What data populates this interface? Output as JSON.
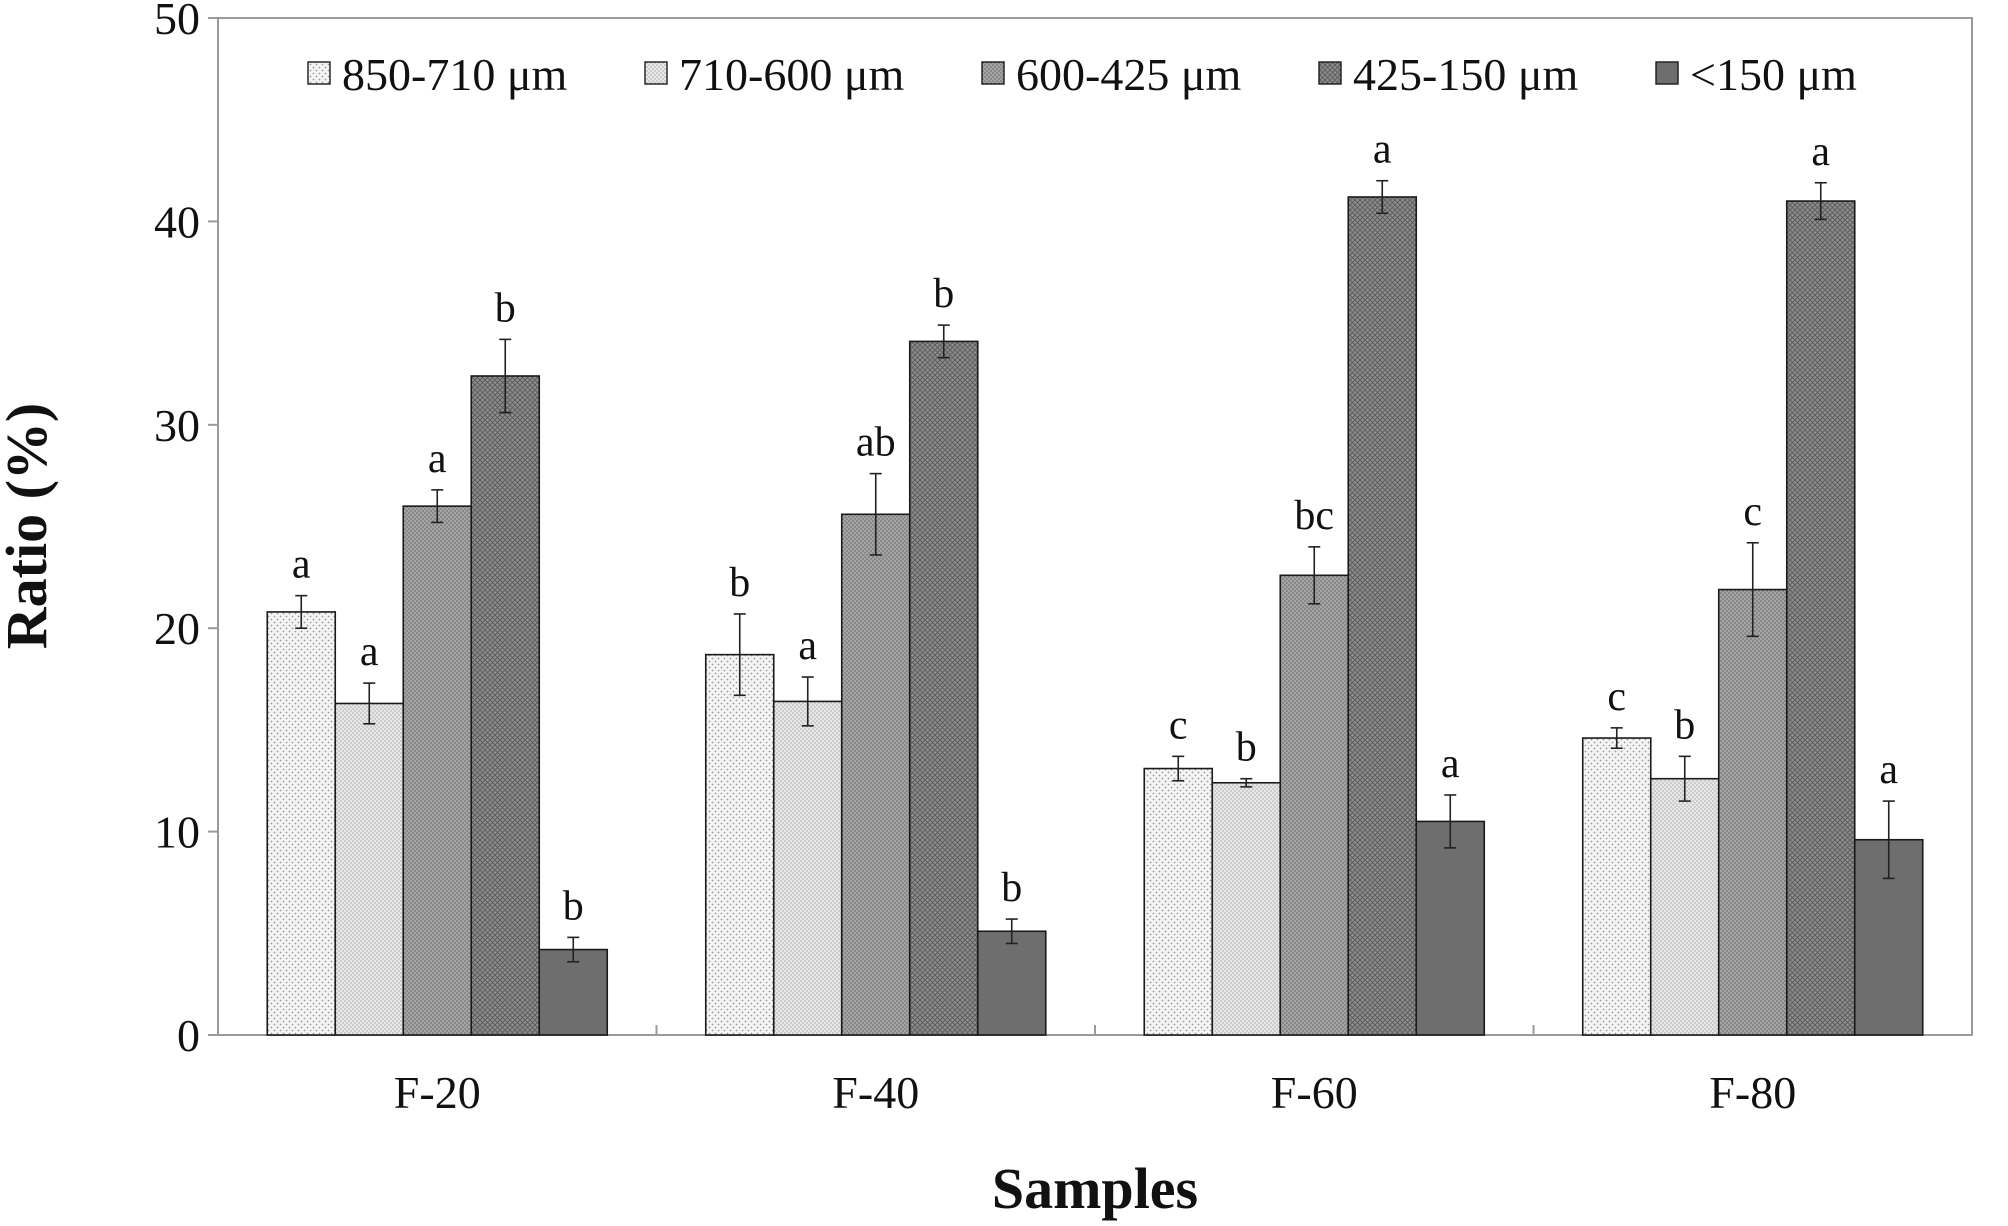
{
  "chart_data": {
    "type": "bar",
    "title": "",
    "xlabel": "Samples",
    "ylabel": "Ratio (%)",
    "ylim": [
      0,
      50
    ],
    "yticks": [
      "0",
      "10",
      "20",
      "30",
      "40",
      "50"
    ],
    "categories": [
      "F-20",
      "F-40",
      "F-60",
      "F-80"
    ],
    "legend_position": "top",
    "grid": false,
    "series": [
      {
        "name": "850-710 μm",
        "fill": "#f2f2f2",
        "pattern": "sparse-dots",
        "values": [
          20.8,
          18.7,
          13.1,
          14.6
        ],
        "errors": [
          0.8,
          2.0,
          0.6,
          0.5
        ],
        "letters": [
          "a",
          "b",
          "c",
          "c"
        ]
      },
      {
        "name": "710-600 μm",
        "fill": "#e4e4e4",
        "pattern": "fine-dots",
        "values": [
          16.3,
          16.4,
          12.4,
          12.6
        ],
        "errors": [
          1.0,
          1.2,
          0.2,
          1.1
        ],
        "letters": [
          "a",
          "a",
          "b",
          "b"
        ]
      },
      {
        "name": "600-425 μm",
        "fill": "#9c9c9c",
        "pattern": "dense-dots",
        "values": [
          26.0,
          25.6,
          22.6,
          21.9
        ],
        "errors": [
          0.8,
          2.0,
          1.4,
          2.3
        ],
        "letters": [
          "a",
          "ab",
          "bc",
          "c"
        ]
      },
      {
        "name": "425-150 μm",
        "fill": "#858585",
        "pattern": "cross-hatch",
        "values": [
          32.4,
          34.1,
          41.2,
          41.0
        ],
        "errors": [
          1.8,
          0.8,
          0.8,
          0.9
        ],
        "letters": [
          "b",
          "b",
          "a",
          "a"
        ]
      },
      {
        "name": "<150 μm",
        "fill": "#6e6e6e",
        "pattern": "solid",
        "values": [
          4.2,
          5.1,
          10.5,
          9.6
        ],
        "errors": [
          0.6,
          0.6,
          1.3,
          1.9
        ],
        "letters": [
          "b",
          "b",
          "a",
          "a"
        ]
      }
    ]
  }
}
